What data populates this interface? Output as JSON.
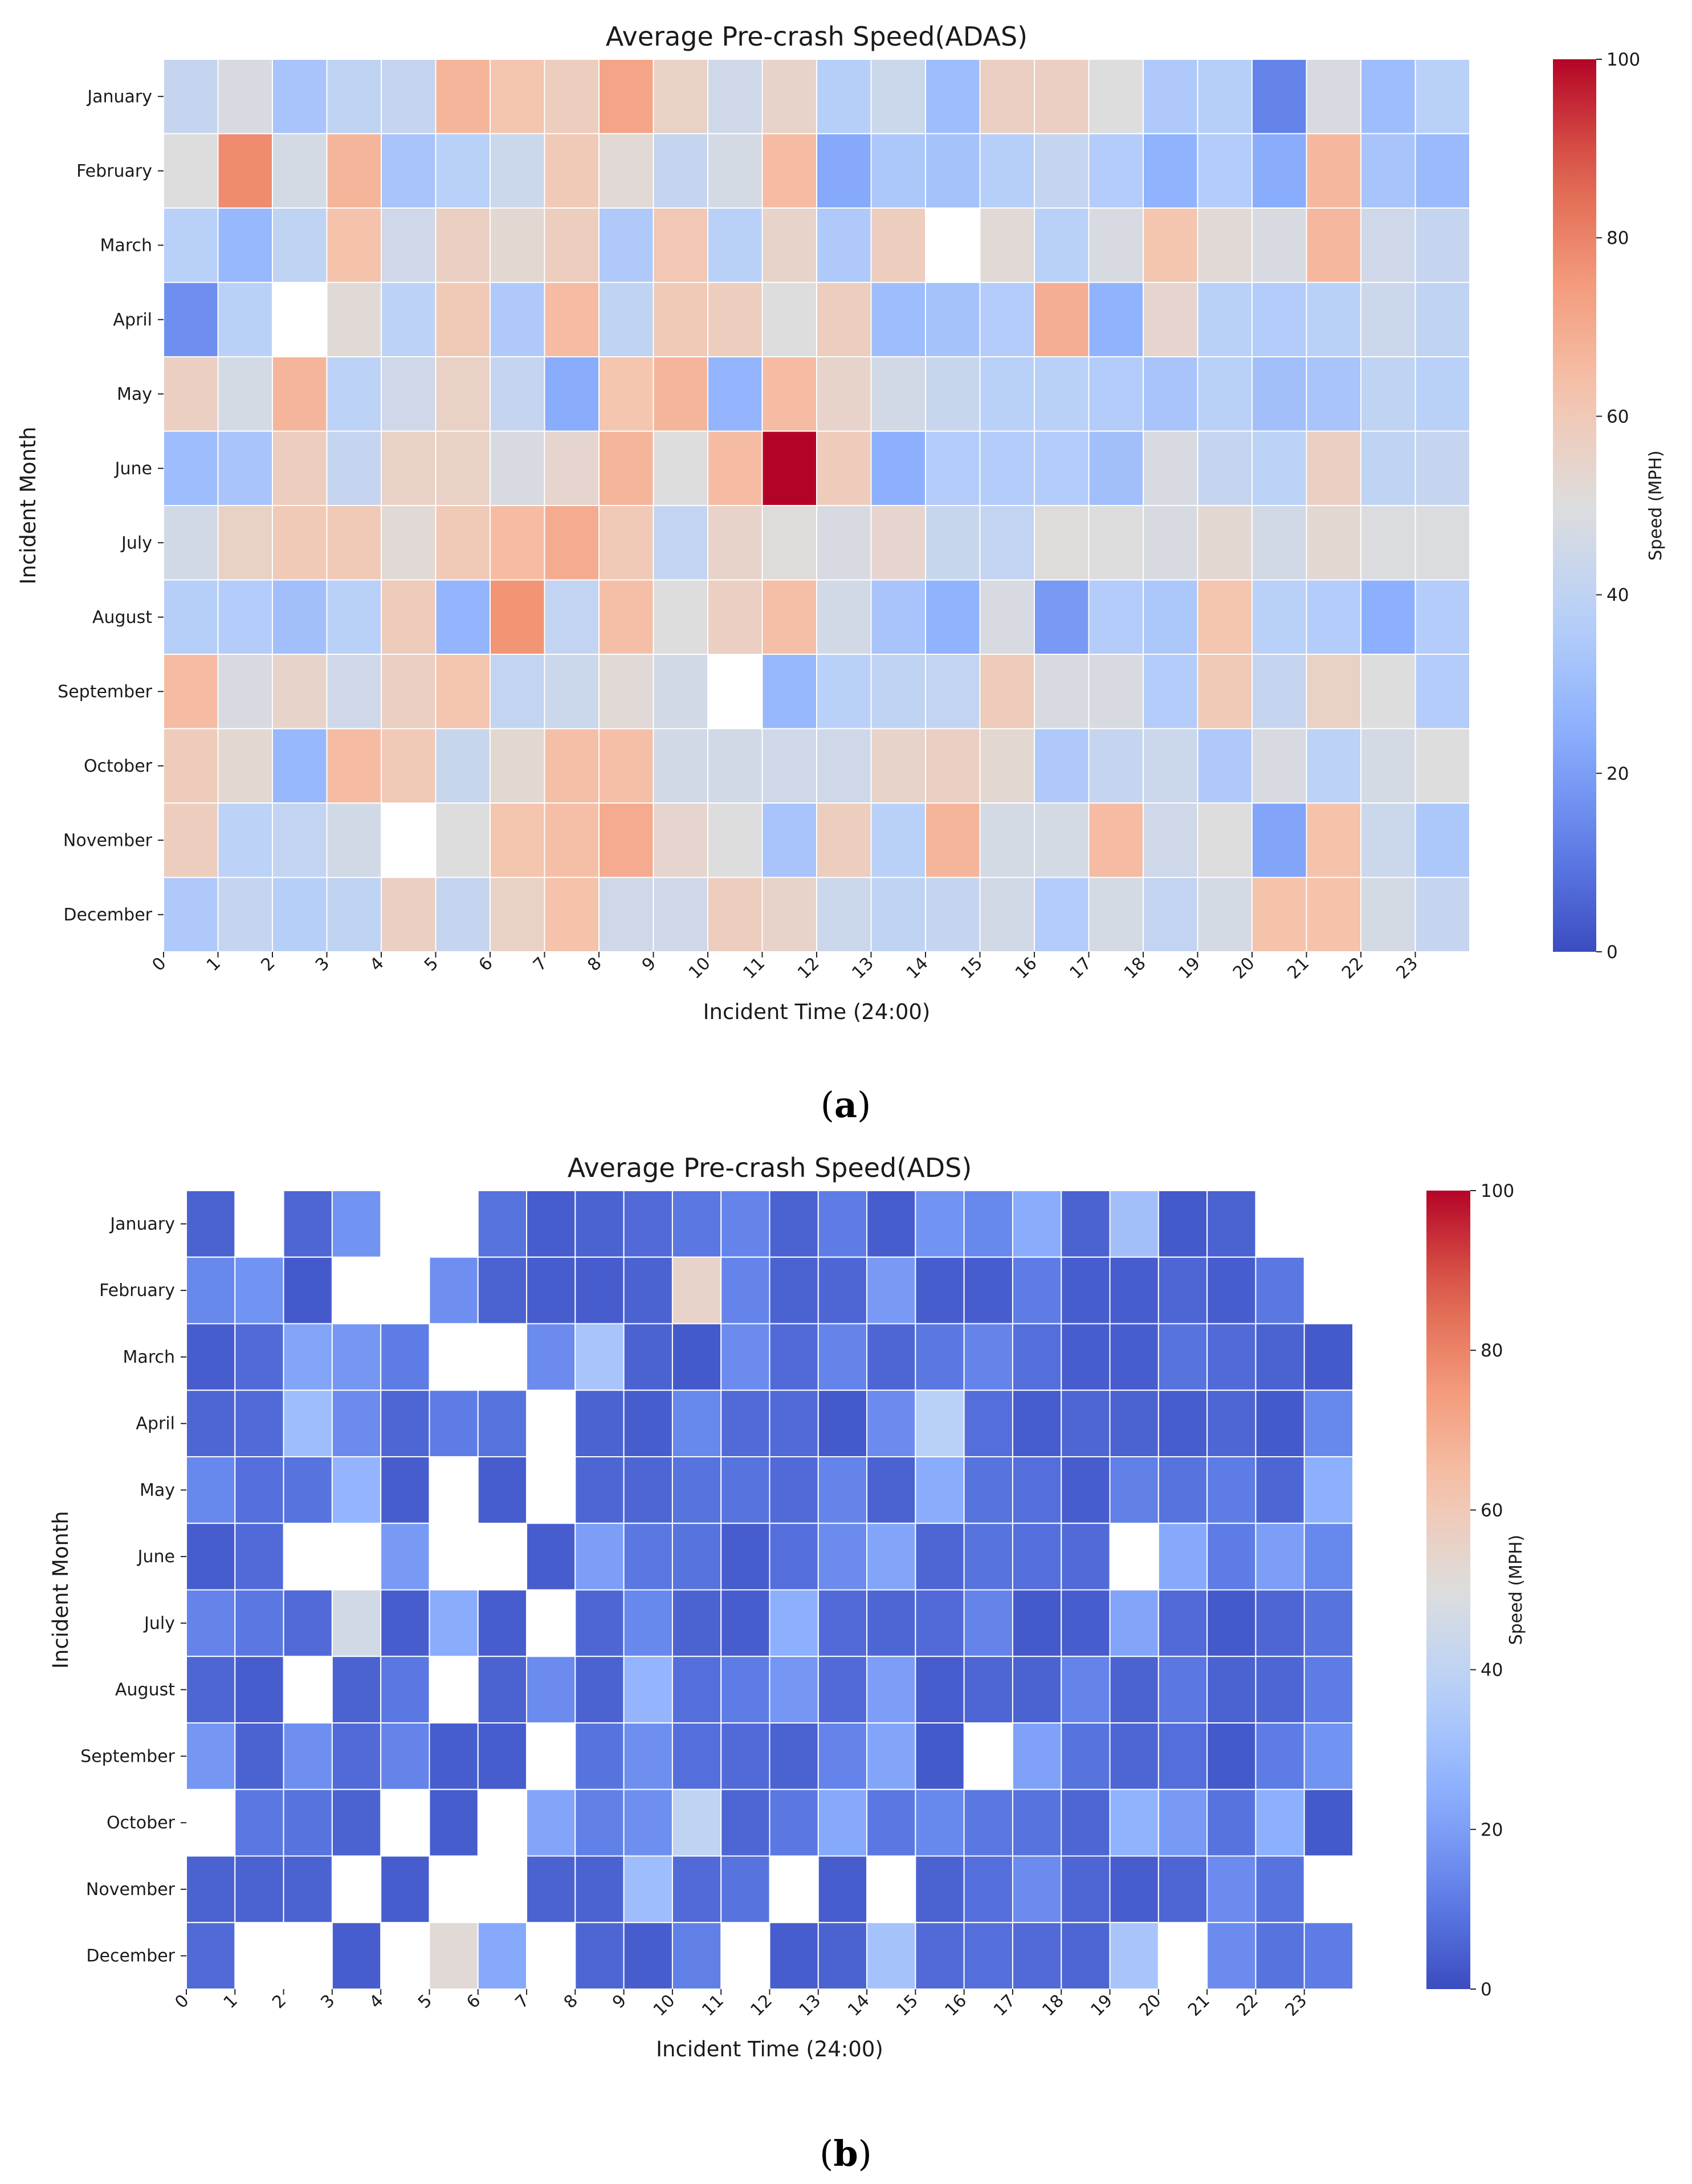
{
  "figure": {
    "panel_a_label": "a",
    "panel_b_label": "b"
  },
  "chart_data": [
    {
      "type": "heatmap",
      "title": "Average Pre-crash Speed(ADAS)",
      "xlabel": "Incident Time (24:00)",
      "ylabel": "Incident Month",
      "x_ticks": [
        "0",
        "1",
        "2",
        "3",
        "4",
        "5",
        "6",
        "7",
        "8",
        "9",
        "10",
        "11",
        "12",
        "13",
        "14",
        "15",
        "16",
        "17",
        "18",
        "19",
        "20",
        "21",
        "22",
        "23"
      ],
      "y_ticks": [
        "January",
        "February",
        "March",
        "April",
        "May",
        "June",
        "July",
        "August",
        "September",
        "October",
        "November",
        "December"
      ],
      "colorbar": {
        "label": "Speed (MPH)",
        "min": 0,
        "max": 100,
        "ticks": [
          "0",
          "20",
          "40",
          "60",
          "80",
          "100"
        ],
        "colormap": "coolwarm"
      },
      "values": [
        [
          42,
          48,
          33,
          40,
          42,
          67,
          62,
          58,
          72,
          56,
          45,
          55,
          37,
          44,
          30,
          57,
          57,
          50,
          35,
          37,
          13,
          48,
          30,
          38
        ],
        [
          50,
          78,
          47,
          67,
          33,
          38,
          44,
          60,
          52,
          42,
          47,
          65,
          23,
          34,
          32,
          37,
          42,
          36,
          26,
          36,
          24,
          66,
          33,
          29
        ],
        [
          38,
          28,
          40,
          63,
          45,
          57,
          53,
          58,
          35,
          61,
          38,
          55,
          35,
          58,
          null,
          52,
          38,
          48,
          62,
          52,
          48,
          66,
          45,
          42
        ],
        [
          16,
          38,
          null,
          52,
          39,
          60,
          35,
          65,
          40,
          60,
          58,
          50,
          58,
          30,
          32,
          36,
          69,
          26,
          54,
          38,
          36,
          38,
          44,
          40
        ],
        [
          57,
          47,
          67,
          39,
          45,
          56,
          42,
          24,
          62,
          67,
          27,
          65,
          55,
          46,
          43,
          38,
          38,
          36,
          33,
          38,
          31,
          33,
          40,
          38
        ],
        [
          30,
          33,
          58,
          42,
          56,
          56,
          48,
          54,
          67,
          50,
          65,
          100,
          59,
          25,
          36,
          36,
          36,
          31,
          48,
          42,
          39,
          57,
          40,
          42
        ],
        [
          46,
          56,
          60,
          60,
          52,
          60,
          65,
          70,
          60,
          41,
          55,
          51,
          48,
          54,
          43,
          41,
          51,
          50,
          48,
          53,
          46,
          53,
          49,
          49
        ],
        [
          37,
          36,
          31,
          38,
          59,
          27,
          76,
          41,
          64,
          50,
          57,
          64,
          46,
          33,
          26,
          48,
          19,
          36,
          34,
          62,
          38,
          36,
          25,
          36
        ],
        [
          65,
          48,
          55,
          45,
          57,
          62,
          41,
          44,
          52,
          46,
          null,
          28,
          38,
          40,
          41,
          59,
          48,
          48,
          36,
          60,
          42,
          56,
          50,
          36
        ],
        [
          59,
          53,
          28,
          65,
          60,
          43,
          53,
          64,
          64,
          46,
          46,
          45,
          45,
          55,
          57,
          53,
          35,
          42,
          44,
          35,
          48,
          39,
          47,
          50
        ],
        [
          58,
          39,
          41,
          46,
          null,
          50,
          62,
          64,
          70,
          54,
          50,
          33,
          58,
          38,
          67,
          47,
          47,
          65,
          45,
          50,
          22,
          63,
          44,
          34
        ],
        [
          35,
          42,
          37,
          40,
          57,
          42,
          56,
          63,
          45,
          45,
          58,
          55,
          44,
          40,
          42,
          46,
          36,
          47,
          41,
          47,
          63,
          63,
          47,
          42
        ]
      ]
    },
    {
      "type": "heatmap",
      "title": "Average Pre-crash Speed(ADS)",
      "xlabel": "Incident Time (24:00)",
      "ylabel": "Incident Month",
      "x_ticks": [
        "0",
        "1",
        "2",
        "3",
        "4",
        "5",
        "6",
        "7",
        "8",
        "9",
        "10",
        "11",
        "12",
        "13",
        "14",
        "15",
        "16",
        "17",
        "18",
        "19",
        "20",
        "21",
        "22",
        "23"
      ],
      "y_ticks": [
        "January",
        "February",
        "March",
        "April",
        "May",
        "June",
        "July",
        "August",
        "September",
        "October",
        "November",
        "December"
      ],
      "colorbar": {
        "label": "Speed (MPH)",
        "min": 0,
        "max": 100,
        "ticks": [
          "0",
          "20",
          "40",
          "60",
          "80",
          "100"
        ],
        "colormap": "coolwarm"
      },
      "values": [
        [
          5,
          null,
          6,
          17,
          null,
          null,
          9,
          4,
          5,
          7,
          10,
          13,
          5,
          11,
          4,
          17,
          14,
          24,
          5,
          31,
          3,
          5,
          null,
          null
        ],
        [
          14,
          17,
          3,
          null,
          null,
          16,
          5,
          4,
          4,
          5,
          55,
          13,
          5,
          6,
          19,
          4,
          4,
          11,
          4,
          4,
          6,
          4,
          10,
          null
        ],
        [
          4,
          7,
          22,
          18,
          11,
          null,
          null,
          15,
          33,
          5,
          3,
          15,
          7,
          13,
          6,
          10,
          13,
          8,
          4,
          4,
          9,
          7,
          5,
          3
        ],
        [
          6,
          7,
          30,
          15,
          6,
          11,
          9,
          null,
          5,
          4,
          14,
          7,
          7,
          3,
          15,
          38,
          8,
          4,
          6,
          5,
          4,
          6,
          3,
          14
        ],
        [
          14,
          8,
          9,
          27,
          4,
          null,
          4,
          null,
          6,
          6,
          9,
          9,
          7,
          13,
          5,
          24,
          9,
          8,
          4,
          12,
          9,
          11,
          6,
          25
        ],
        [
          4,
          7,
          null,
          null,
          19,
          null,
          null,
          4,
          20,
          10,
          9,
          4,
          8,
          15,
          22,
          6,
          9,
          8,
          7,
          null,
          23,
          11,
          20,
          14
        ],
        [
          13,
          10,
          7,
          46,
          4,
          24,
          4,
          null,
          6,
          14,
          5,
          4,
          25,
          7,
          6,
          7,
          13,
          3,
          4,
          22,
          7,
          3,
          6,
          9
        ],
        [
          6,
          4,
          null,
          5,
          10,
          null,
          5,
          15,
          5,
          27,
          8,
          11,
          18,
          7,
          20,
          4,
          6,
          5,
          13,
          5,
          10,
          5,
          6,
          11
        ],
        [
          18,
          5,
          16,
          7,
          13,
          4,
          4,
          null,
          9,
          16,
          8,
          7,
          5,
          13,
          22,
          3,
          null,
          21,
          9,
          6,
          8,
          3,
          11,
          17
        ],
        [
          null,
          10,
          9,
          5,
          null,
          4,
          null,
          22,
          12,
          16,
          40,
          6,
          10,
          23,
          10,
          14,
          10,
          9,
          6,
          26,
          19,
          9,
          25,
          3
        ],
        [
          5,
          5,
          5,
          null,
          4,
          null,
          null,
          5,
          5,
          30,
          7,
          9,
          null,
          4,
          null,
          5,
          8,
          15,
          6,
          4,
          6,
          15,
          9,
          null
        ],
        [
          7,
          null,
          null,
          4,
          null,
          52,
          23,
          null,
          6,
          4,
          12,
          null,
          4,
          5,
          32,
          7,
          8,
          7,
          6,
          33,
          null,
          15,
          9,
          11
        ]
      ]
    }
  ]
}
